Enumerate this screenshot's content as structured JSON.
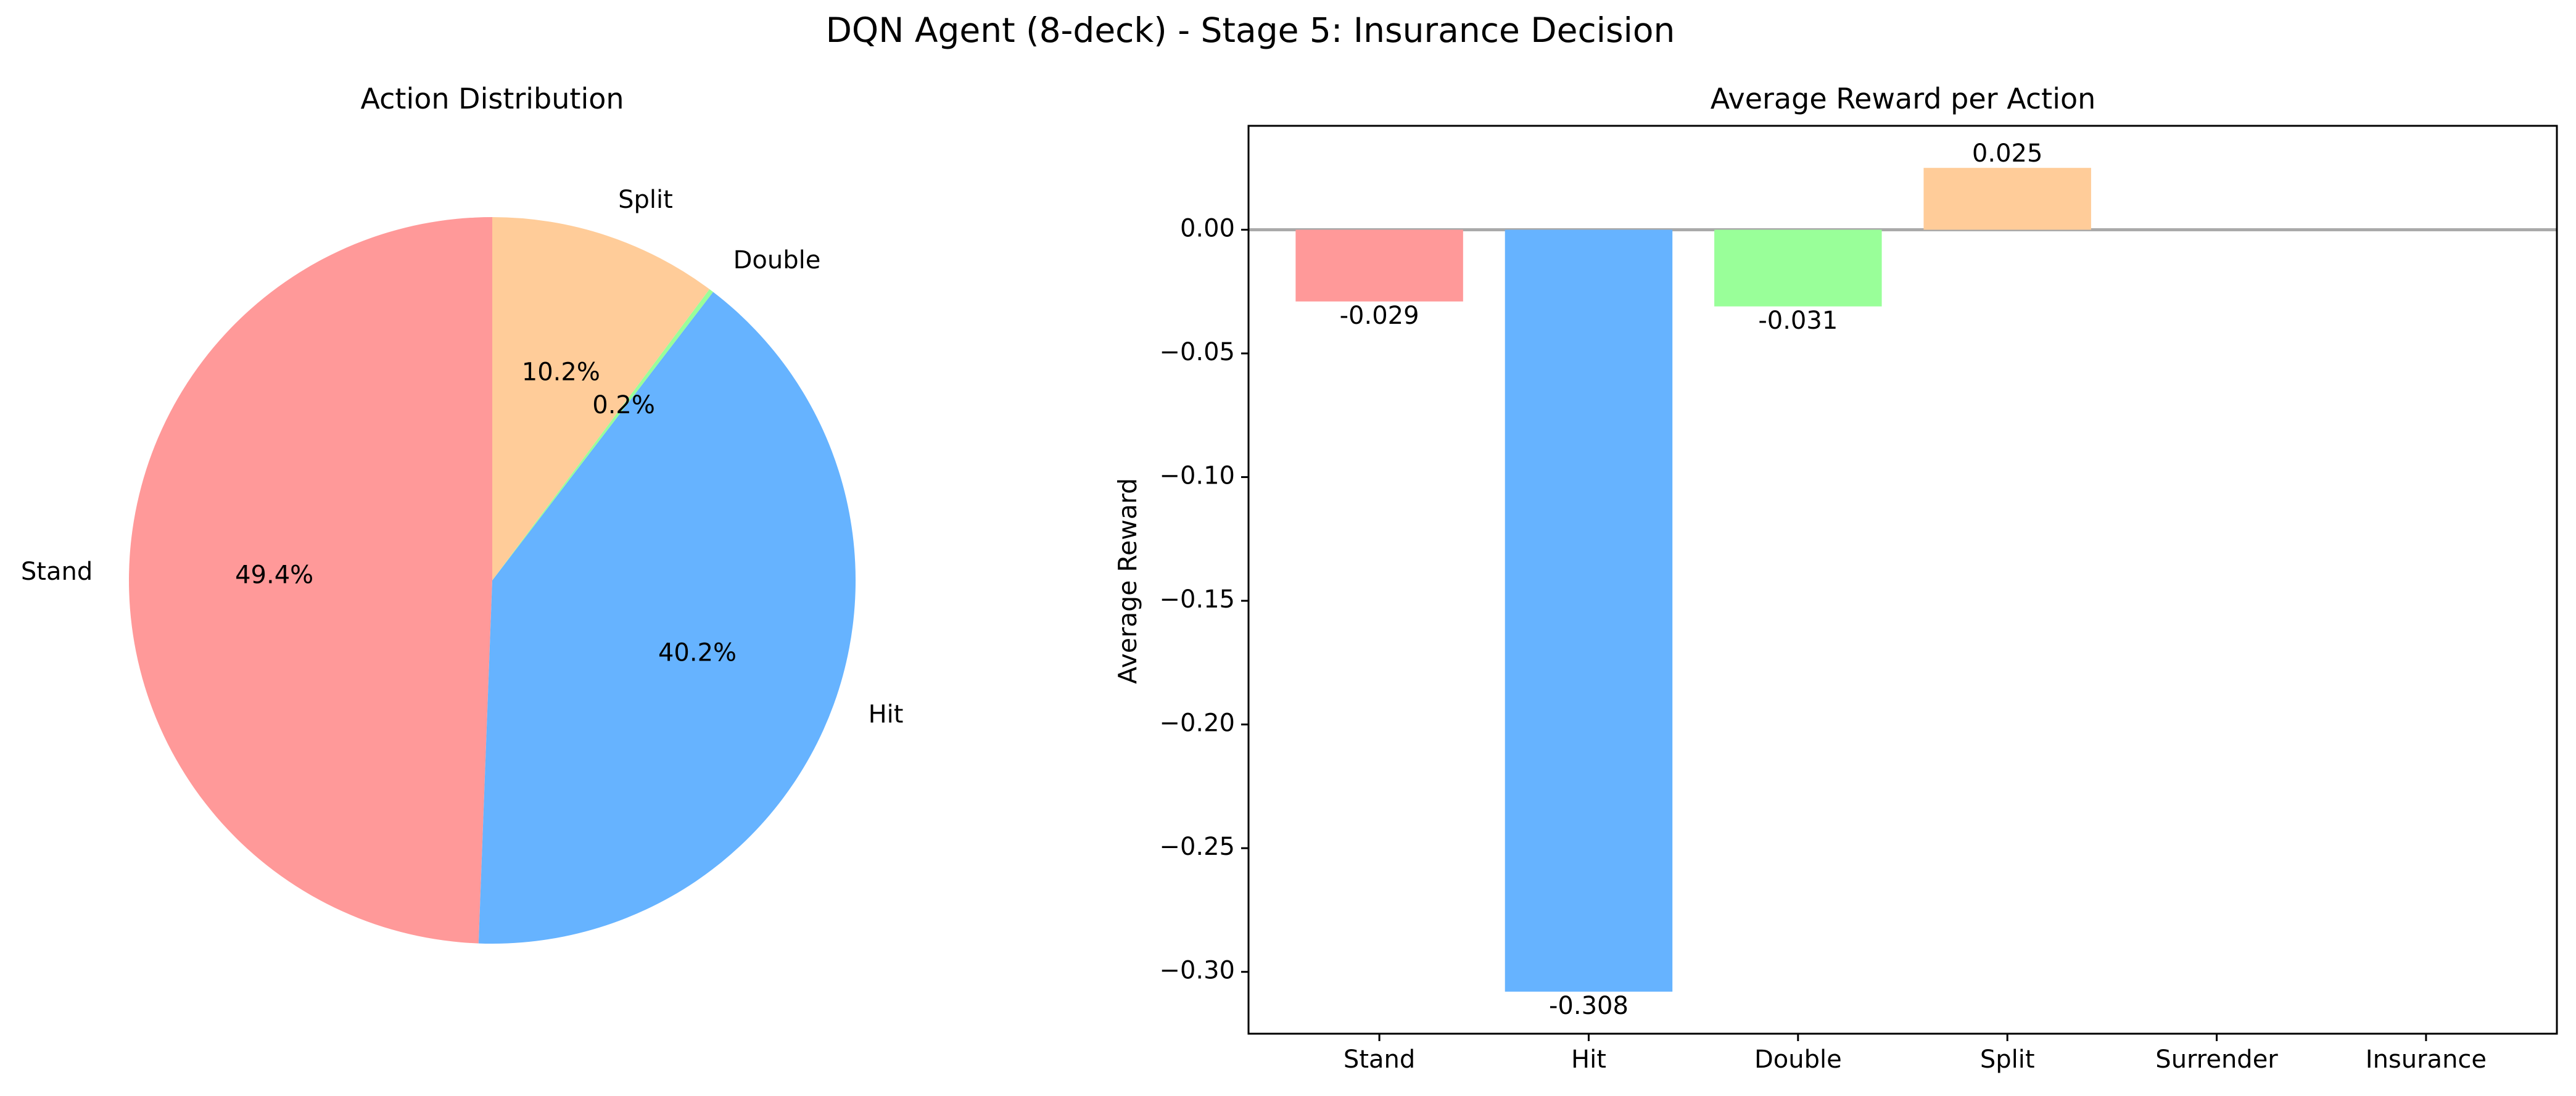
{
  "figure": {
    "suptitle": "DQN Agent (8-deck) - Stage 5: Insurance Decision"
  },
  "chart_data": [
    {
      "type": "pie",
      "title": "Action Distribution",
      "labels": [
        "Stand",
        "Hit",
        "Double",
        "Split"
      ],
      "values": [
        49.4,
        40.2,
        0.2,
        10.2
      ],
      "autopct_labels": [
        "49.4%",
        "40.2%",
        "0.2%",
        "10.2%"
      ],
      "colors": [
        "#ff9999",
        "#66b3ff",
        "#99ff99",
        "#ffcc99"
      ],
      "start_angle_deg": 90,
      "direction": "counterclockwise"
    },
    {
      "type": "bar",
      "title": "Average Reward per Action",
      "xlabel": "",
      "ylabel": "Average Reward",
      "categories": [
        "Stand",
        "Hit",
        "Double",
        "Split",
        "Surrender",
        "Insurance"
      ],
      "values": [
        -0.029,
        -0.308,
        -0.031,
        0.025,
        null,
        null
      ],
      "value_labels": [
        "-0.029",
        "-0.308",
        "-0.031",
        "0.025",
        "",
        ""
      ],
      "colors": [
        "#ff9999",
        "#66b3ff",
        "#99ff99",
        "#ffcc99",
        "#ff99cc",
        "#c2c2f0"
      ],
      "ylim": [
        -0.325,
        0.042
      ],
      "yticks": [
        0.0,
        -0.05,
        -0.1,
        -0.15,
        -0.2,
        -0.25,
        -0.3
      ],
      "ytick_labels": [
        "0.00",
        "−0.05",
        "−0.10",
        "−0.15",
        "−0.20",
        "−0.25",
        "−0.30"
      ],
      "zero_line": true,
      "grid": false
    }
  ]
}
